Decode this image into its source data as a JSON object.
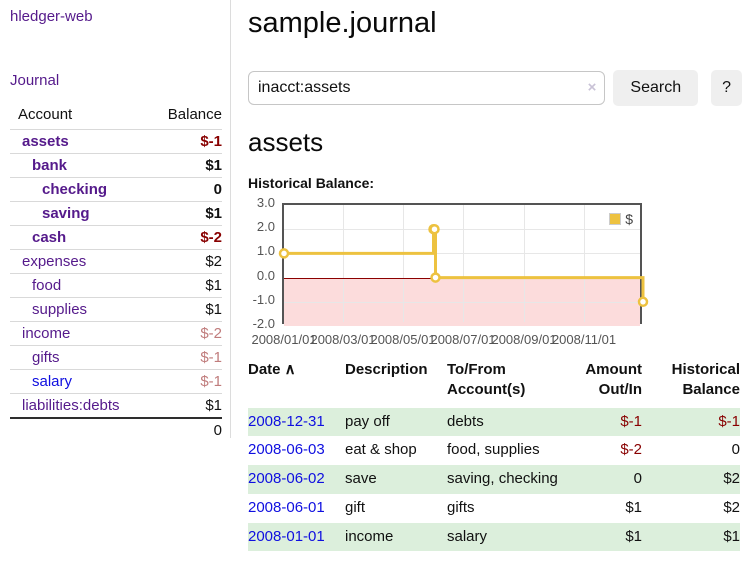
{
  "sidebar": {
    "app_title": "hledger-web",
    "journal_link": "Journal",
    "accounts": {
      "header_account": "Account",
      "header_balance": "Balance",
      "rows": [
        {
          "name": "assets",
          "balance": "$-1",
          "depth": 1,
          "bold": true,
          "name_color": "purple",
          "balance_color": "negative"
        },
        {
          "name": "bank",
          "balance": "$1",
          "depth": 2,
          "bold": true,
          "name_color": "purple",
          "balance_color": "normal"
        },
        {
          "name": "checking",
          "balance": "0",
          "depth": 3,
          "bold": true,
          "name_color": "purple",
          "balance_color": "normal"
        },
        {
          "name": "saving",
          "balance": "$1",
          "depth": 3,
          "bold": true,
          "name_color": "purple",
          "balance_color": "normal"
        },
        {
          "name": "cash",
          "balance": "$-2",
          "depth": 2,
          "bold": true,
          "name_color": "purple",
          "balance_color": "negative"
        },
        {
          "name": "expenses",
          "balance": "$2",
          "depth": 1,
          "bold": false,
          "name_color": "purple",
          "balance_color": "normal"
        },
        {
          "name": "food",
          "balance": "$1",
          "depth": 2,
          "bold": false,
          "name_color": "purple",
          "balance_color": "normal"
        },
        {
          "name": "supplies",
          "balance": "$1",
          "depth": 2,
          "bold": false,
          "name_color": "purple",
          "balance_color": "normal"
        },
        {
          "name": "income",
          "balance": "$-2",
          "depth": 1,
          "bold": false,
          "name_color": "purple",
          "balance_color": "negative-muted"
        },
        {
          "name": "gifts",
          "balance": "$-1",
          "depth": 2,
          "bold": false,
          "name_color": "purple",
          "balance_color": "negative-muted"
        },
        {
          "name": "salary",
          "balance": "$-1",
          "depth": 2,
          "bold": false,
          "name_color": "blue",
          "balance_color": "negative-muted"
        },
        {
          "name": "liabilities:debts",
          "balance": "$1",
          "depth": 1,
          "bold": false,
          "name_color": "purple",
          "balance_color": "normal"
        }
      ],
      "total": "0"
    }
  },
  "main": {
    "title": "sample.journal",
    "search": {
      "value": "inacct:assets",
      "clear_icon": "×",
      "search_button": "Search",
      "help_button": "?"
    },
    "account_heading": "assets",
    "chart_title": "Historical Balance:"
  },
  "chart_data": {
    "type": "line",
    "step": true,
    "title": "Historical Balance:",
    "series": [
      {
        "name": "$",
        "color": "#EDC240",
        "points": [
          [
            "2008-01-01",
            1
          ],
          [
            "2008-06-01",
            2
          ],
          [
            "2008-06-02",
            2
          ],
          [
            "2008-06-03",
            0
          ],
          [
            "2008-12-31",
            -1
          ]
        ]
      }
    ],
    "ylim": [
      -2,
      3
    ],
    "yticks": [
      3,
      2,
      1,
      0,
      -1,
      -2
    ],
    "xrange": [
      "2008-01-01",
      "2009-01-01"
    ],
    "xticks": [
      "2008/01/01",
      "2008/03/01",
      "2008/05/01",
      "2008/07/01",
      "2008/09/01",
      "2008/11/01"
    ],
    "legend": {
      "position": "top-right",
      "label": "$"
    },
    "grid": true,
    "negative_region_color": "#FCDCDC",
    "zero_line_color": "#8B0000"
  },
  "register": {
    "columns": [
      {
        "label": "Date",
        "sort_icon": "∧",
        "align": "left"
      },
      {
        "label": "Description",
        "align": "left"
      },
      {
        "label": "To/From Account(s)",
        "align": "left"
      },
      {
        "label": "Amount Out/In",
        "align": "right"
      },
      {
        "label": "Historical Balance",
        "align": "right"
      }
    ],
    "rows": [
      {
        "date": "2008-12-31",
        "description": "pay off",
        "accounts": "debts",
        "amount": "$-1",
        "amount_neg": true,
        "balance": "$-1",
        "balance_neg": true,
        "shaded": true
      },
      {
        "date": "2008-06-03",
        "description": "eat & shop",
        "accounts": "food, supplies",
        "amount": "$-2",
        "amount_neg": true,
        "balance": "0",
        "balance_neg": false,
        "shaded": false
      },
      {
        "date": "2008-06-02",
        "description": "save",
        "accounts": "saving, checking",
        "amount": "0",
        "amount_neg": false,
        "balance": "$2",
        "balance_neg": false,
        "shaded": true
      },
      {
        "date": "2008-06-01",
        "description": "gift",
        "accounts": "gifts",
        "amount": "$1",
        "amount_neg": false,
        "balance": "$2",
        "balance_neg": false,
        "shaded": false
      },
      {
        "date": "2008-01-01",
        "description": "income",
        "accounts": "salary",
        "amount": "$1",
        "amount_neg": false,
        "balance": "$1",
        "balance_neg": false,
        "shaded": true
      }
    ]
  },
  "colors": {
    "link_purple": "#551A8B",
    "link_blue": "#0F0FE0",
    "negative": "#880000",
    "negative_muted": "#C07C7C",
    "row_green": "#DCEFDC",
    "accent_gold": "#EDC240",
    "chart_border": "#545454",
    "negative_region": "#FCDCDC",
    "zero_line": "#8B0000"
  }
}
